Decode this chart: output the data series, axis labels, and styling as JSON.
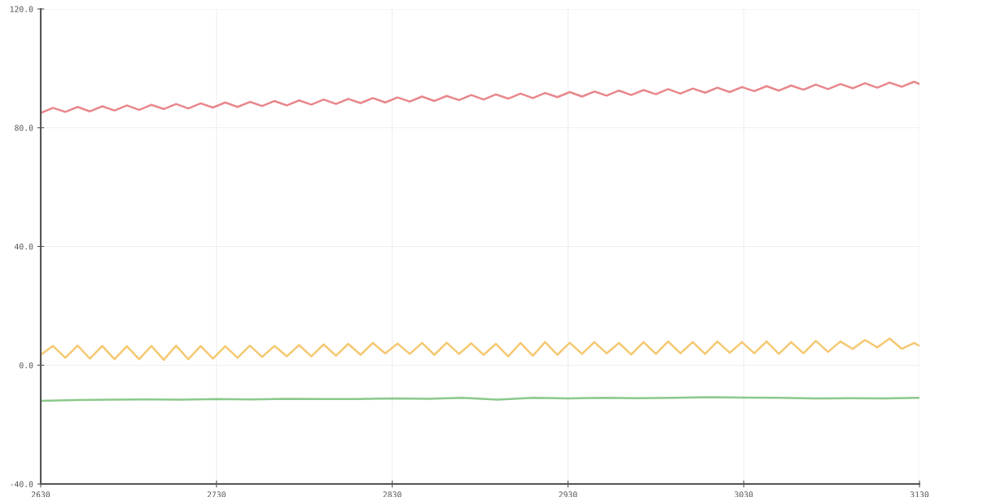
{
  "chart_data": {
    "type": "line",
    "x": [
      2630,
      2637,
      2644,
      2651,
      2658,
      2665,
      2672,
      2679,
      2686,
      2693,
      2700,
      2707,
      2714,
      2721,
      2728,
      2735,
      2742,
      2749,
      2756,
      2763,
      2770,
      2777,
      2784,
      2791,
      2798,
      2805,
      2812,
      2819,
      2826,
      2833,
      2840,
      2847,
      2854,
      2861,
      2868,
      2875,
      2882,
      2889,
      2896,
      2903,
      2910,
      2917,
      2924,
      2931,
      2938,
      2945,
      2952,
      2959,
      2966,
      2973,
      2980,
      2987,
      2994,
      3001,
      3008,
      3015,
      3022,
      3029,
      3036,
      3043,
      3050,
      3057,
      3064,
      3071,
      3078,
      3085,
      3092,
      3099,
      3106,
      3113,
      3120,
      3127,
      3130
    ],
    "series": [
      {
        "color": "#e8878c",
        "values": [
          85.0,
          86.7,
          85.3,
          87.0,
          85.5,
          87.2,
          85.8,
          87.5,
          86.0,
          87.7,
          86.3,
          88.0,
          86.5,
          88.2,
          86.8,
          88.5,
          87.0,
          88.7,
          87.3,
          89.0,
          87.5,
          89.2,
          87.8,
          89.5,
          88.0,
          89.7,
          88.3,
          90.0,
          88.5,
          90.2,
          88.8,
          90.5,
          89.0,
          90.7,
          89.3,
          91.0,
          89.5,
          91.2,
          89.8,
          91.5,
          90.0,
          91.7,
          90.3,
          92.0,
          90.5,
          92.2,
          90.8,
          92.5,
          91.0,
          92.7,
          91.3,
          93.0,
          91.5,
          93.2,
          91.8,
          93.5,
          92.0,
          93.7,
          92.3,
          94.0,
          92.5,
          94.2,
          92.8,
          94.5,
          93.0,
          94.7,
          93.3,
          95.0,
          93.5,
          95.2,
          93.8,
          95.5,
          94.7
        ]
      },
      {
        "color": "#f5c872",
        "values": [
          3.5,
          6.5,
          2.5,
          6.6,
          2.2,
          6.5,
          2.0,
          6.4,
          2.0,
          6.5,
          1.8,
          6.6,
          2.0,
          6.5,
          2.2,
          6.4,
          2.5,
          6.6,
          2.8,
          6.5,
          3.0,
          6.8,
          3.0,
          7.0,
          3.2,
          7.2,
          3.5,
          7.5,
          4.0,
          7.3,
          3.8,
          7.5,
          3.5,
          7.6,
          3.8,
          7.4,
          3.5,
          7.2,
          3.0,
          7.5,
          3.2,
          7.8,
          3.5,
          7.6,
          3.8,
          7.8,
          4.0,
          7.5,
          3.6,
          7.8,
          3.8,
          8.0,
          4.0,
          7.8,
          3.8,
          8.0,
          4.2,
          7.8,
          4.0,
          8.0,
          3.8,
          7.8,
          4.0,
          8.2,
          4.5,
          8.0,
          5.5,
          8.5,
          6.0,
          9.0,
          5.5,
          7.5,
          6.5
        ]
      },
      {
        "color": "#8cc88c",
        "x": [
          2630,
          2650,
          2670,
          2690,
          2710,
          2730,
          2750,
          2770,
          2790,
          2810,
          2830,
          2850,
          2870,
          2890,
          2910,
          2930,
          2950,
          2970,
          2990,
          3010,
          3030,
          3050,
          3070,
          3090,
          3110,
          3130
        ],
        "values": [
          -12.0,
          -11.7,
          -11.6,
          -11.5,
          -11.6,
          -11.4,
          -11.5,
          -11.3,
          -11.4,
          -11.4,
          -11.2,
          -11.3,
          -11.0,
          -11.6,
          -11.0,
          -11.2,
          -11.0,
          -11.1,
          -11.0,
          -10.8,
          -10.9,
          -11.0,
          -11.2,
          -11.1,
          -11.2,
          -11.0
        ]
      }
    ],
    "xlim": [
      2630,
      3130
    ],
    "xticks": [
      2630,
      2730,
      2830,
      2930,
      3030,
      3130
    ],
    "ylim": [
      -40,
      120
    ],
    "yticks": [
      {
        "value": -40,
        "label": "-40.0"
      },
      {
        "value": 0,
        "label": "0.0"
      },
      {
        "value": 40,
        "label": "40.0"
      },
      {
        "value": 80,
        "label": "80.0"
      },
      {
        "value": 120,
        "label": "120.0"
      }
    ],
    "grid": true,
    "line_style": "solid"
  }
}
